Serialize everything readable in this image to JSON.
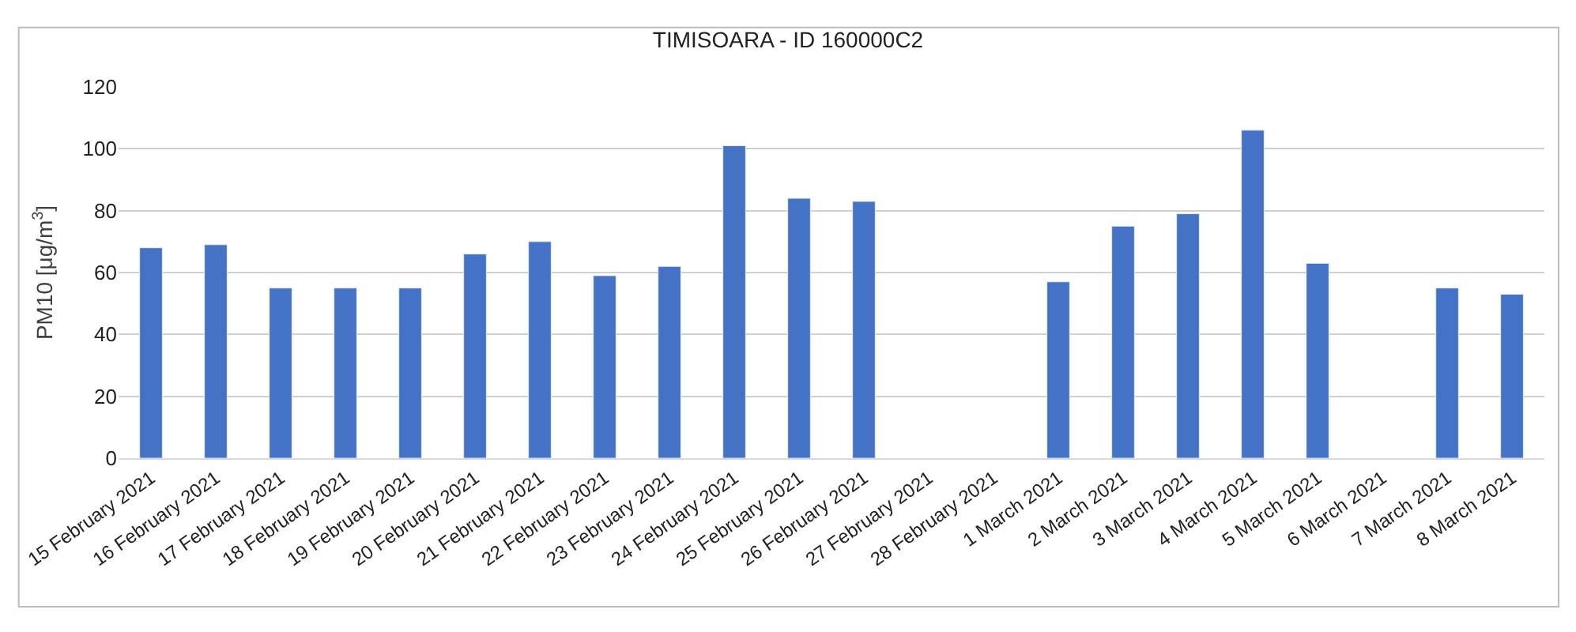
{
  "chart_data": {
    "type": "bar",
    "title": "TIMISOARA - ID 160000C2",
    "ylabel": "PM10 [μg/m$^{3}$]",
    "categories": [
      "15 February 2021",
      "16 February 2021",
      "17 February 2021",
      "18 February 2021",
      "19 February 2021",
      "20 February 2021",
      "21 February 2021",
      "22 February 2021",
      "23 February 2021",
      "24 February 2021",
      "25 February 2021",
      "26 February 2021",
      "27 February 2021",
      "28 February 2021",
      "1 March 2021",
      "2 March 2021",
      "3 March 2021",
      "4 March 2021",
      "5 March 2021",
      "6 March 2021",
      "7 March 2021",
      "8 March 2021"
    ],
    "values": [
      68,
      69,
      55,
      55,
      55,
      66,
      70,
      59,
      62,
      101,
      84,
      83,
      null,
      null,
      57,
      75,
      79,
      106,
      63,
      null,
      55,
      53
    ],
    "color": "#4472c4",
    "ylim": [
      0,
      120
    ],
    "yticks": [
      0,
      20,
      40,
      60,
      80,
      100,
      120
    ],
    "grid": "y"
  }
}
